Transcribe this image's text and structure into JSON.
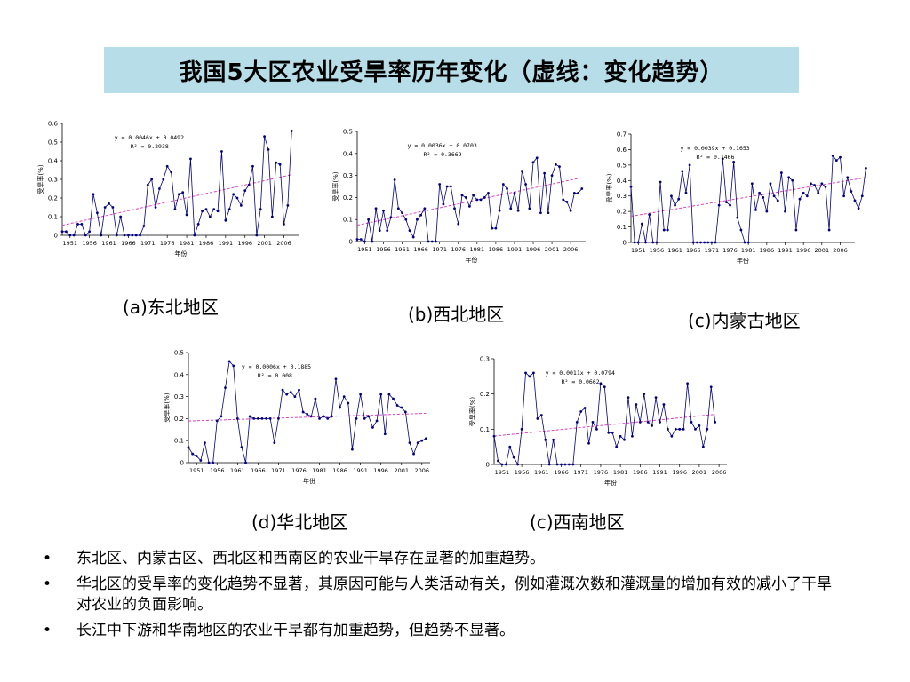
{
  "title": "我国5大区农业受旱率历年变化（虚线：变化趋势）",
  "bullet_char": "•",
  "bullets": [
    "东北区、内蒙古区、西北区和西南区的农业干旱存在显著的加重趋势。",
    "华北区的受旱率的变化趋势不显著，其原因可能与人类活动有关，例如灌溉次数和灌溉量的增加有效的减小了干旱对农业的负面影响。",
    "长江中下游和华南地区的农业干旱都有加重趋势，但趋势不显著。"
  ],
  "colors": {
    "series": "#000080",
    "trend": "#e040c0",
    "axis": "#000000"
  },
  "chart_data": [
    {
      "type": "line",
      "caption": "(a)东北地区",
      "xlabel": "年份",
      "ylabel": "受旱率(%)",
      "xlim": [
        1949,
        2010
      ],
      "ylim": [
        0,
        0.6
      ],
      "yticks": [
        "0",
        "0.1",
        "0.2",
        "0.3",
        "0.4",
        "0.5",
        "0.6"
      ],
      "xticks": [
        "1951",
        "1956",
        "1961",
        "1966",
        "1971",
        "1976",
        "1981",
        "1986",
        "1991",
        "1996",
        "2001",
        "2006"
      ],
      "equation": "y = 0.0046x + 0.0492",
      "r2": "R² = 0.2938",
      "trend": {
        "slope": 0.0046,
        "intercept": 0.0492
      },
      "x_start": 1949,
      "values": [
        0.02,
        0.02,
        0.0,
        0.0,
        0.06,
        0.06,
        0.0,
        0.02,
        0.22,
        0.12,
        0.0,
        0.15,
        0.17,
        0.15,
        0.0,
        0.1,
        0.0,
        0.0,
        0.0,
        0.0,
        0.0,
        0.05,
        0.27,
        0.3,
        0.15,
        0.25,
        0.3,
        0.37,
        0.34,
        0.14,
        0.22,
        0.23,
        0.11,
        0.41,
        0.0,
        0.06,
        0.13,
        0.14,
        0.1,
        0.14,
        0.13,
        0.45,
        0.08,
        0.14,
        0.22,
        0.2,
        0.16,
        0.24,
        0.27,
        0.37,
        0.0,
        0.14,
        0.53,
        0.46,
        0.1,
        0.39,
        0.38,
        0.06,
        0.16,
        0.56
      ]
    },
    {
      "type": "line",
      "caption": "(b)西北地区",
      "xlabel": "年份",
      "ylabel": "受旱率(%)",
      "xlim": [
        1949,
        2010
      ],
      "ylim": [
        0,
        0.5
      ],
      "yticks": [
        "0",
        "0.1",
        "0.2",
        "0.3",
        "0.4",
        "0.5"
      ],
      "xticks": [
        "1951",
        "1956",
        "1961",
        "1966",
        "1971",
        "1976",
        "1981",
        "1986",
        "1991",
        "1996",
        "2001",
        "2006"
      ],
      "equation": "y = 0.0036x + 0.0703",
      "r2": "R² = 0.3669",
      "trend": {
        "slope": 0.0036,
        "intercept": 0.0703
      },
      "x_start": 1949,
      "values": [
        0.01,
        0.01,
        0.0,
        0.1,
        0.0,
        0.15,
        0.05,
        0.14,
        0.05,
        0.11,
        0.28,
        0.15,
        0.13,
        0.1,
        0.05,
        0.02,
        0.1,
        0.12,
        0.15,
        0.0,
        0.0,
        0.0,
        0.26,
        0.17,
        0.25,
        0.25,
        0.15,
        0.08,
        0.21,
        0.2,
        0.16,
        0.21,
        0.19,
        0.19,
        0.2,
        0.22,
        0.06,
        0.06,
        0.14,
        0.26,
        0.24,
        0.15,
        0.22,
        0.14,
        0.32,
        0.26,
        0.15,
        0.36,
        0.38,
        0.13,
        0.31,
        0.13,
        0.3,
        0.35,
        0.34,
        0.19,
        0.18,
        0.14,
        0.22,
        0.22,
        0.24
      ]
    },
    {
      "type": "line",
      "caption": "(c)内蒙古地区",
      "xlabel": "年份",
      "ylabel": "受旱率(%)",
      "xlim": [
        1949,
        2010
      ],
      "ylim": [
        0,
        0.7
      ],
      "yticks": [
        "0",
        "0.1",
        "0.2",
        "0.3",
        "0.4",
        "0.5",
        "0.6",
        "0.7"
      ],
      "xticks": [
        "1951",
        "1956",
        "1961",
        "1966",
        "1971",
        "1976",
        "1981",
        "1986",
        "1991",
        "1996",
        "2001",
        "2006"
      ],
      "equation": "y = 0.0039x + 0.1653",
      "r2": "R² = 0.1466",
      "trend": {
        "slope": 0.0039,
        "intercept": 0.1653
      },
      "x_start": 1949,
      "values": [
        0.36,
        0.0,
        0.0,
        0.12,
        0.0,
        0.18,
        0.0,
        0.0,
        0.39,
        0.08,
        0.08,
        0.3,
        0.24,
        0.28,
        0.46,
        0.32,
        0.5,
        0.0,
        0.0,
        0.0,
        0.0,
        0.0,
        0.0,
        0.0,
        0.24,
        0.54,
        0.26,
        0.24,
        0.52,
        0.16,
        0.08,
        0.0,
        0.0,
        0.38,
        0.21,
        0.32,
        0.29,
        0.2,
        0.38,
        0.3,
        0.27,
        0.45,
        0.2,
        0.42,
        0.4,
        0.08,
        0.28,
        0.32,
        0.3,
        0.38,
        0.37,
        0.32,
        0.38,
        0.36,
        0.08,
        0.56,
        0.53,
        0.55,
        0.3,
        0.42,
        0.33,
        0.27,
        0.22,
        0.3,
        0.48
      ]
    },
    {
      "type": "line",
      "caption": "(d)华北地区",
      "xlabel": "年份",
      "ylabel": "受旱率(%)",
      "xlim": [
        1949,
        2008
      ],
      "ylim": [
        0,
        0.5
      ],
      "yticks": [
        "0",
        "0.1",
        "0.2",
        "0.3",
        "0.4",
        "0.5"
      ],
      "xticks": [
        "1951",
        "1956",
        "1961",
        "1966",
        "1971",
        "1976",
        "1981",
        "1986",
        "1991",
        "1996",
        "2001",
        "2006"
      ],
      "equation": "y = 0.0006x + 0.1885",
      "r2": "R² = 0.008",
      "trend": {
        "slope": 0.0006,
        "intercept": 0.1885
      },
      "x_start": 1949,
      "values": [
        0.07,
        0.04,
        0.03,
        0.01,
        0.09,
        0.0,
        0.0,
        0.19,
        0.21,
        0.34,
        0.46,
        0.44,
        0.2,
        0.07,
        0.0,
        0.21,
        0.2,
        0.2,
        0.2,
        0.2,
        0.2,
        0.09,
        0.2,
        0.33,
        0.31,
        0.32,
        0.3,
        0.33,
        0.23,
        0.22,
        0.21,
        0.29,
        0.2,
        0.21,
        0.2,
        0.21,
        0.38,
        0.25,
        0.3,
        0.27,
        0.06,
        0.2,
        0.31,
        0.2,
        0.21,
        0.16,
        0.19,
        0.31,
        0.13,
        0.31,
        0.29,
        0.26,
        0.25,
        0.23,
        0.09,
        0.04,
        0.09,
        0.1,
        0.11
      ]
    },
    {
      "type": "line",
      "caption": "(c)西南地区",
      "xlabel": "年份",
      "ylabel": "受旱率(%)",
      "xlim": [
        1949,
        2008
      ],
      "ylim": [
        0,
        0.3
      ],
      "yticks": [
        "0",
        "0.1",
        "0.2",
        "0.3"
      ],
      "xticks": [
        "1951",
        "1956",
        "1961",
        "1966",
        "1971",
        "1976",
        "1981",
        "1986",
        "1991",
        "1996",
        "2001",
        "2006"
      ],
      "equation": "y = 0.0011x + 0.0794",
      "r2": "R² = 0.0662",
      "trend": {
        "slope": 0.0011,
        "intercept": 0.0794
      },
      "x_start": 1949,
      "values": [
        0.08,
        0.01,
        0.0,
        0.0,
        0.05,
        0.02,
        0.0,
        0.1,
        0.26,
        0.25,
        0.26,
        0.13,
        0.14,
        0.07,
        0.0,
        0.07,
        0.0,
        0.0,
        0.0,
        0.0,
        0.0,
        0.12,
        0.15,
        0.16,
        0.06,
        0.12,
        0.1,
        0.23,
        0.22,
        0.09,
        0.09,
        0.05,
        0.08,
        0.07,
        0.19,
        0.08,
        0.17,
        0.12,
        0.2,
        0.12,
        0.11,
        0.19,
        0.12,
        0.17,
        0.1,
        0.08,
        0.1,
        0.1,
        0.1,
        0.23,
        0.12,
        0.1,
        0.11,
        0.05,
        0.1,
        0.22,
        0.12
      ]
    }
  ]
}
